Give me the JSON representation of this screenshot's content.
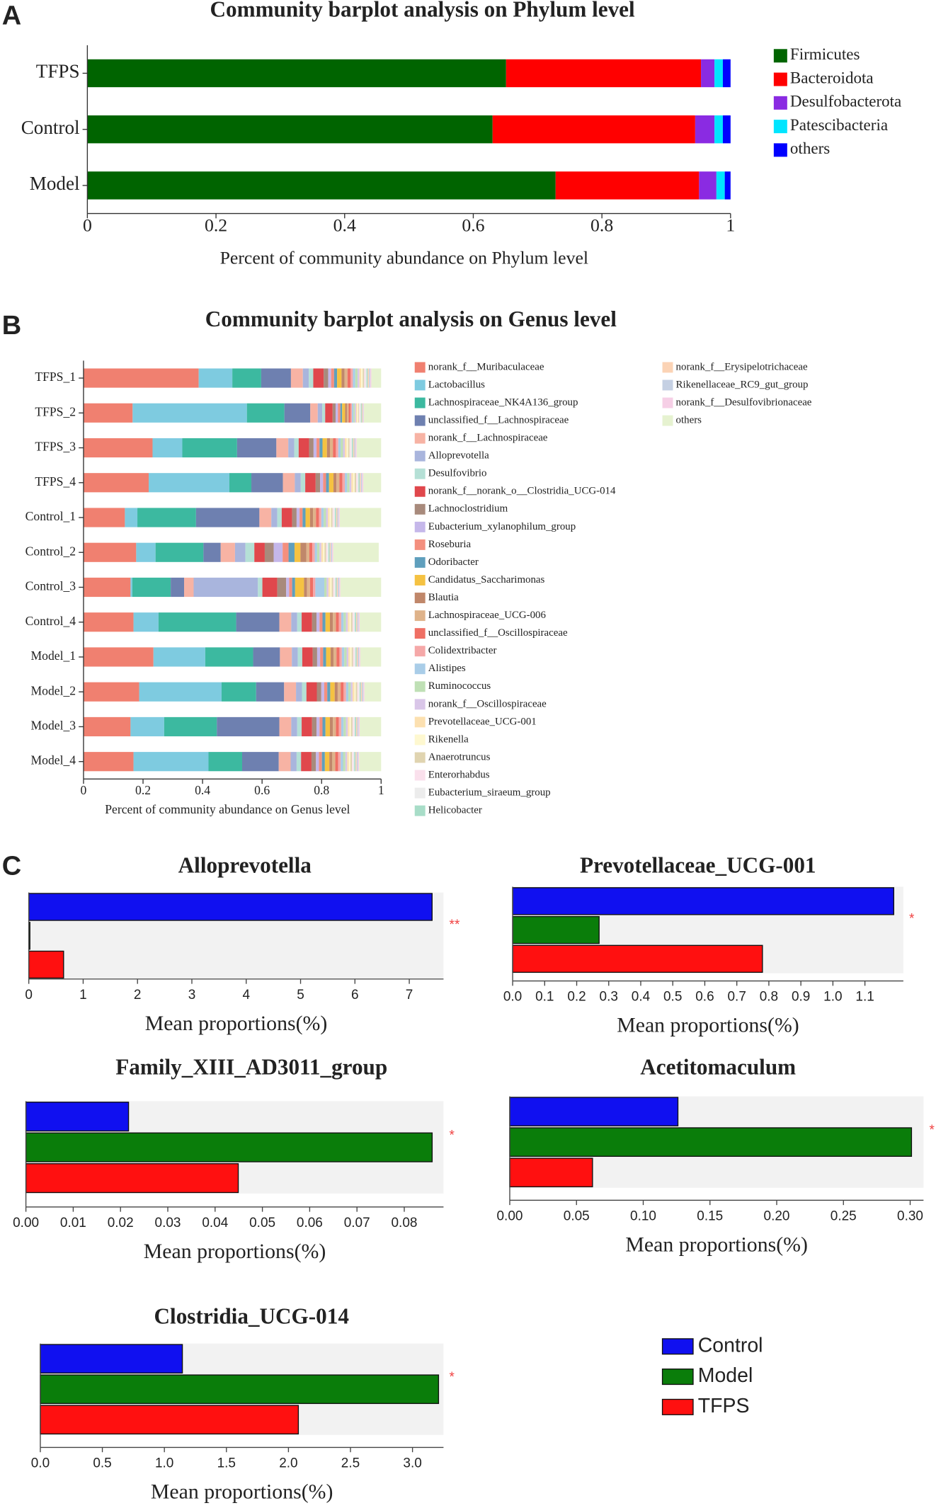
{
  "chart_data": [
    {
      "type": "stacked_bar",
      "panel_label": "A",
      "title": "Community barplot analysis on Phylum level",
      "xlabel": "Percent of community abundance on Phylum level",
      "categories": [
        "TFPS",
        "Control",
        "Model"
      ],
      "series": [
        {
          "name": "Firmicutes",
          "color": "#006400",
          "values": [
            0.651,
            0.63,
            0.728
          ]
        },
        {
          "name": "Bacteroidota",
          "color": "#ff0000",
          "values": [
            0.303,
            0.315,
            0.223
          ]
        },
        {
          "name": "Desulfobacterota",
          "color": "#8a2be2",
          "values": [
            0.021,
            0.03,
            0.027
          ]
        },
        {
          "name": "Patescibacteria",
          "color": "#00e5ff",
          "values": [
            0.013,
            0.013,
            0.013
          ]
        },
        {
          "name": "others",
          "color": "#0000ff",
          "values": [
            0.012,
            0.012,
            0.009
          ]
        }
      ],
      "xlim": [
        0,
        1
      ],
      "xticks": [
        0,
        0.2,
        0.4,
        0.6,
        0.8,
        1
      ]
    },
    {
      "type": "stacked_bar",
      "panel_label": "B",
      "title": "Community barplot analysis on Genus level",
      "xlabel": "Percent of community abundance on Genus level",
      "categories": [
        "TFPS_1",
        "TFPS_2",
        "TFPS_3",
        "TFPS_4",
        "Control_1",
        "Control_2",
        "Control_3",
        "Control_4",
        "Model_1",
        "Model_2",
        "Model_3",
        "Model_4"
      ],
      "series": [
        {
          "name": "norank_f__Muribaculaceae",
          "color": "#f08070",
          "values": [
            0.387,
            0.165,
            0.232,
            0.219,
            0.139,
            0.177,
            0.158,
            0.168,
            0.235,
            0.187,
            0.158,
            0.168
          ]
        },
        {
          "name": "Lactobacillus",
          "color": "#7ecbe0",
          "values": [
            0.113,
            0.384,
            0.1,
            0.271,
            0.042,
            0.065,
            0.006,
            0.084,
            0.174,
            0.277,
            0.113,
            0.252
          ]
        },
        {
          "name": "Lachnospiraceae_NK4A136_group",
          "color": "#3cb9a0",
          "values": [
            0.097,
            0.126,
            0.184,
            0.074,
            0.197,
            0.161,
            0.129,
            0.261,
            0.161,
            0.116,
            0.177,
            0.113
          ]
        },
        {
          "name": "unclassified_f__Lachnospiraceae",
          "color": "#6e80b0",
          "values": [
            0.1,
            0.087,
            0.132,
            0.106,
            0.213,
            0.058,
            0.045,
            0.145,
            0.09,
            0.094,
            0.21,
            0.123
          ]
        },
        {
          "name": "norank_f__Lachnospiraceae",
          "color": "#f7b3a4",
          "values": [
            0.04,
            0.025,
            0.04,
            0.04,
            0.04,
            0.048,
            0.032,
            0.04,
            0.04,
            0.04,
            0.04,
            0.04
          ]
        },
        {
          "name": "Alloprevotella",
          "color": "#a9b5dd",
          "values": [
            0.02,
            0.015,
            0.02,
            0.02,
            0.02,
            0.035,
            0.216,
            0.02,
            0.02,
            0.02,
            0.02,
            0.02
          ]
        },
        {
          "name": "Desulfovibrio",
          "color": "#b5e0d6",
          "values": [
            0.015,
            0.01,
            0.015,
            0.015,
            0.015,
            0.03,
            0.015,
            0.015,
            0.015,
            0.015,
            0.015,
            0.015
          ]
        },
        {
          "name": "norank_f__norank_o__Clostridia_UCG-014",
          "color": "#e0474c",
          "values": [
            0.035,
            0.025,
            0.035,
            0.035,
            0.035,
            0.035,
            0.05,
            0.035,
            0.035,
            0.035,
            0.035,
            0.035
          ]
        },
        {
          "name": "Lachnoclostridium",
          "color": "#a88a7c",
          "values": [
            0.015,
            0.01,
            0.015,
            0.015,
            0.015,
            0.03,
            0.03,
            0.015,
            0.015,
            0.015,
            0.015,
            0.015
          ]
        },
        {
          "name": "Eubacterium_xylanophilum_group",
          "color": "#c5b7ea",
          "values": [
            0.01,
            0.008,
            0.01,
            0.01,
            0.01,
            0.03,
            0.01,
            0.01,
            0.01,
            0.01,
            0.01,
            0.01
          ]
        },
        {
          "name": "Roseburia",
          "color": "#f48f7e",
          "values": [
            0.01,
            0.008,
            0.01,
            0.01,
            0.01,
            0.02,
            0.01,
            0.01,
            0.01,
            0.01,
            0.01,
            0.01
          ]
        },
        {
          "name": "Odoribacter",
          "color": "#5f9fbd",
          "values": [
            0.01,
            0.006,
            0.01,
            0.01,
            0.01,
            0.02,
            0.01,
            0.01,
            0.01,
            0.01,
            0.01,
            0.01
          ]
        },
        {
          "name": "Candidatus_Saccharimonas",
          "color": "#f5c242",
          "values": [
            0.015,
            0.01,
            0.015,
            0.015,
            0.015,
            0.02,
            0.03,
            0.015,
            0.015,
            0.015,
            0.015,
            0.015
          ]
        },
        {
          "name": "Blautia",
          "color": "#c0876a",
          "values": [
            0.01,
            0.006,
            0.01,
            0.01,
            0.01,
            0.02,
            0.01,
            0.01,
            0.01,
            0.01,
            0.01,
            0.01
          ]
        },
        {
          "name": "Lachnospiraceae_UCG-006",
          "color": "#dfb38a",
          "values": [
            0.01,
            0.006,
            0.01,
            0.01,
            0.01,
            0.01,
            0.01,
            0.01,
            0.01,
            0.01,
            0.01,
            0.01
          ]
        },
        {
          "name": "unclassified_f__Oscillospiraceae",
          "color": "#ef6f64",
          "values": [
            0.01,
            0.006,
            0.01,
            0.01,
            0.01,
            0.01,
            0.01,
            0.01,
            0.01,
            0.01,
            0.01,
            0.01
          ]
        },
        {
          "name": "Colidextribacter",
          "color": "#f5a8a8",
          "values": [
            0.008,
            0.005,
            0.008,
            0.008,
            0.008,
            0.008,
            0.008,
            0.008,
            0.008,
            0.008,
            0.008,
            0.008
          ]
        },
        {
          "name": "Alistipes",
          "color": "#a9cde8",
          "values": [
            0.008,
            0.005,
            0.008,
            0.008,
            0.008,
            0.008,
            0.03,
            0.008,
            0.008,
            0.008,
            0.008,
            0.008
          ]
        },
        {
          "name": "Ruminococcus",
          "color": "#bfe0b5",
          "values": [
            0.008,
            0.005,
            0.008,
            0.008,
            0.008,
            0.008,
            0.008,
            0.008,
            0.008,
            0.008,
            0.008,
            0.008
          ]
        },
        {
          "name": "norank_f__Oscillospiraceae",
          "color": "#d9c6e8",
          "values": [
            0.006,
            0.004,
            0.006,
            0.006,
            0.006,
            0.006,
            0.006,
            0.006,
            0.006,
            0.006,
            0.006,
            0.006
          ]
        },
        {
          "name": "Prevotellaceae_UCG-001",
          "color": "#fce0b0",
          "values": [
            0.006,
            0.004,
            0.006,
            0.006,
            0.006,
            0.006,
            0.006,
            0.006,
            0.006,
            0.006,
            0.006,
            0.006
          ]
        },
        {
          "name": "Rikenella",
          "color": "#fef8d0",
          "values": [
            0.005,
            0.003,
            0.005,
            0.005,
            0.005,
            0.005,
            0.005,
            0.005,
            0.005,
            0.005,
            0.005,
            0.005
          ]
        },
        {
          "name": "Anaerotruncus",
          "color": "#e0d4b0",
          "values": [
            0.005,
            0.003,
            0.005,
            0.005,
            0.005,
            0.005,
            0.005,
            0.005,
            0.005,
            0.005,
            0.005,
            0.005
          ]
        },
        {
          "name": "Enterorhabdus",
          "color": "#fae0ec",
          "values": [
            0.004,
            0.003,
            0.004,
            0.004,
            0.004,
            0.004,
            0.004,
            0.004,
            0.004,
            0.004,
            0.004,
            0.004
          ]
        },
        {
          "name": "Eubacterium_siraeum_group",
          "color": "#ececec",
          "values": [
            0.004,
            0.003,
            0.004,
            0.004,
            0.004,
            0.004,
            0.004,
            0.004,
            0.004,
            0.004,
            0.004,
            0.004
          ]
        },
        {
          "name": "Helicobacter",
          "color": "#a8ddc8",
          "values": [
            0.004,
            0.003,
            0.004,
            0.004,
            0.004,
            0.004,
            0.004,
            0.004,
            0.004,
            0.004,
            0.004,
            0.004
          ]
        },
        {
          "name": "norank_f__Erysipelotrichaceae",
          "color": "#fbd3b5",
          "values": [
            0.004,
            0.003,
            0.004,
            0.004,
            0.004,
            0.004,
            0.004,
            0.004,
            0.004,
            0.004,
            0.004,
            0.004
          ]
        },
        {
          "name": "Rikenellaceae_RC9_gut_group",
          "color": "#c5d0e3",
          "values": [
            0.004,
            0.002,
            0.004,
            0.004,
            0.004,
            0.004,
            0.004,
            0.004,
            0.004,
            0.004,
            0.004,
            0.004
          ]
        },
        {
          "name": "norank_f__Desulfovibrionaceae",
          "color": "#f6cfe6",
          "values": [
            0.004,
            0.002,
            0.004,
            0.004,
            0.004,
            0.004,
            0.004,
            0.004,
            0.004,
            0.004,
            0.004,
            0.004
          ]
        },
        {
          "name": "others",
          "color": "#e6f2d0",
          "values": [
            0.033,
            0.058,
            0.082,
            0.06,
            0.139,
            0.153,
            0.137,
            0.072,
            0.07,
            0.056,
            0.072,
            0.074
          ]
        }
      ],
      "xlim": [
        0,
        1
      ],
      "xticks": [
        0,
        0.2,
        0.4,
        0.6,
        0.8,
        1
      ]
    },
    {
      "type": "hbar",
      "panel_label": "C",
      "title": "Alloprevotella",
      "values": [
        7.42,
        0.02,
        0.64
      ],
      "significance": "**",
      "xlabel": "Mean proportions(%)",
      "xlim": [
        0,
        7.63
      ],
      "xticks": [
        0,
        1,
        2,
        3,
        4,
        5,
        6,
        7
      ]
    },
    {
      "type": "hbar",
      "title": "Prevotellaceae_UCG-001",
      "values": [
        1.19,
        0.27,
        0.78
      ],
      "significance": "*",
      "xlabel": "Mean proportions(%)",
      "xlim": [
        0,
        1.22
      ],
      "xticks": [
        {
          "value": 0,
          "label": "0.0"
        },
        0.1,
        0.2,
        0.3,
        0.4,
        0.5,
        0.6,
        0.7,
        0.8,
        0.9,
        {
          "value": 1,
          "label": "1.0"
        },
        1.1
      ]
    },
    {
      "type": "hbar",
      "title": "Family_XIII_AD3011_group",
      "values": [
        0.0217,
        0.0859,
        0.0449
      ],
      "significance": "*",
      "xlabel": "Mean proportions(%)",
      "xlim": [
        0,
        0.0883
      ],
      "xticks": [
        {
          "value": 0,
          "label": "0.00"
        },
        {
          "value": 0.01,
          "label": "0.01"
        },
        {
          "value": 0.02,
          "label": "0.02"
        },
        {
          "value": 0.03,
          "label": "0.03"
        },
        {
          "value": 0.04,
          "label": "0.04"
        },
        {
          "value": 0.05,
          "label": "0.05"
        },
        {
          "value": 0.06,
          "label": "0.06"
        },
        {
          "value": 0.07,
          "label": "0.07"
        },
        {
          "value": 0.08,
          "label": "0.08"
        }
      ]
    },
    {
      "type": "hbar",
      "title": "Acetitomaculum",
      "values": [
        0.126,
        0.301,
        0.062
      ],
      "significance": "*",
      "xlabel": "Mean proportions(%)",
      "xlim": [
        0,
        0.31
      ],
      "xticks": [
        {
          "value": 0,
          "label": "0.00"
        },
        0.05,
        {
          "value": 0.1,
          "label": "0.10"
        },
        0.15,
        {
          "value": 0.2,
          "label": "0.20"
        },
        0.25,
        {
          "value": 0.3,
          "label": "0.30"
        }
      ]
    },
    {
      "type": "hbar",
      "title": "Clostridia_UCG-014",
      "values": [
        1.145,
        3.21,
        2.08
      ],
      "significance": "*",
      "xlabel": "Mean proportions(%)",
      "xlim": [
        0,
        3.25
      ],
      "xticks": [
        {
          "value": 0,
          "label": "0.0"
        },
        0.5,
        {
          "value": 1,
          "label": "1.0"
        },
        1.5,
        {
          "value": 2,
          "label": "2.0"
        },
        2.5,
        {
          "value": 3,
          "label": "3.0"
        }
      ]
    }
  ],
  "group_legend": [
    {
      "name": "Control",
      "color": "#1010f0"
    },
    {
      "name": "Model",
      "color": "#0a7d0a"
    },
    {
      "name": "TFPS",
      "color": "#ff1010"
    }
  ]
}
